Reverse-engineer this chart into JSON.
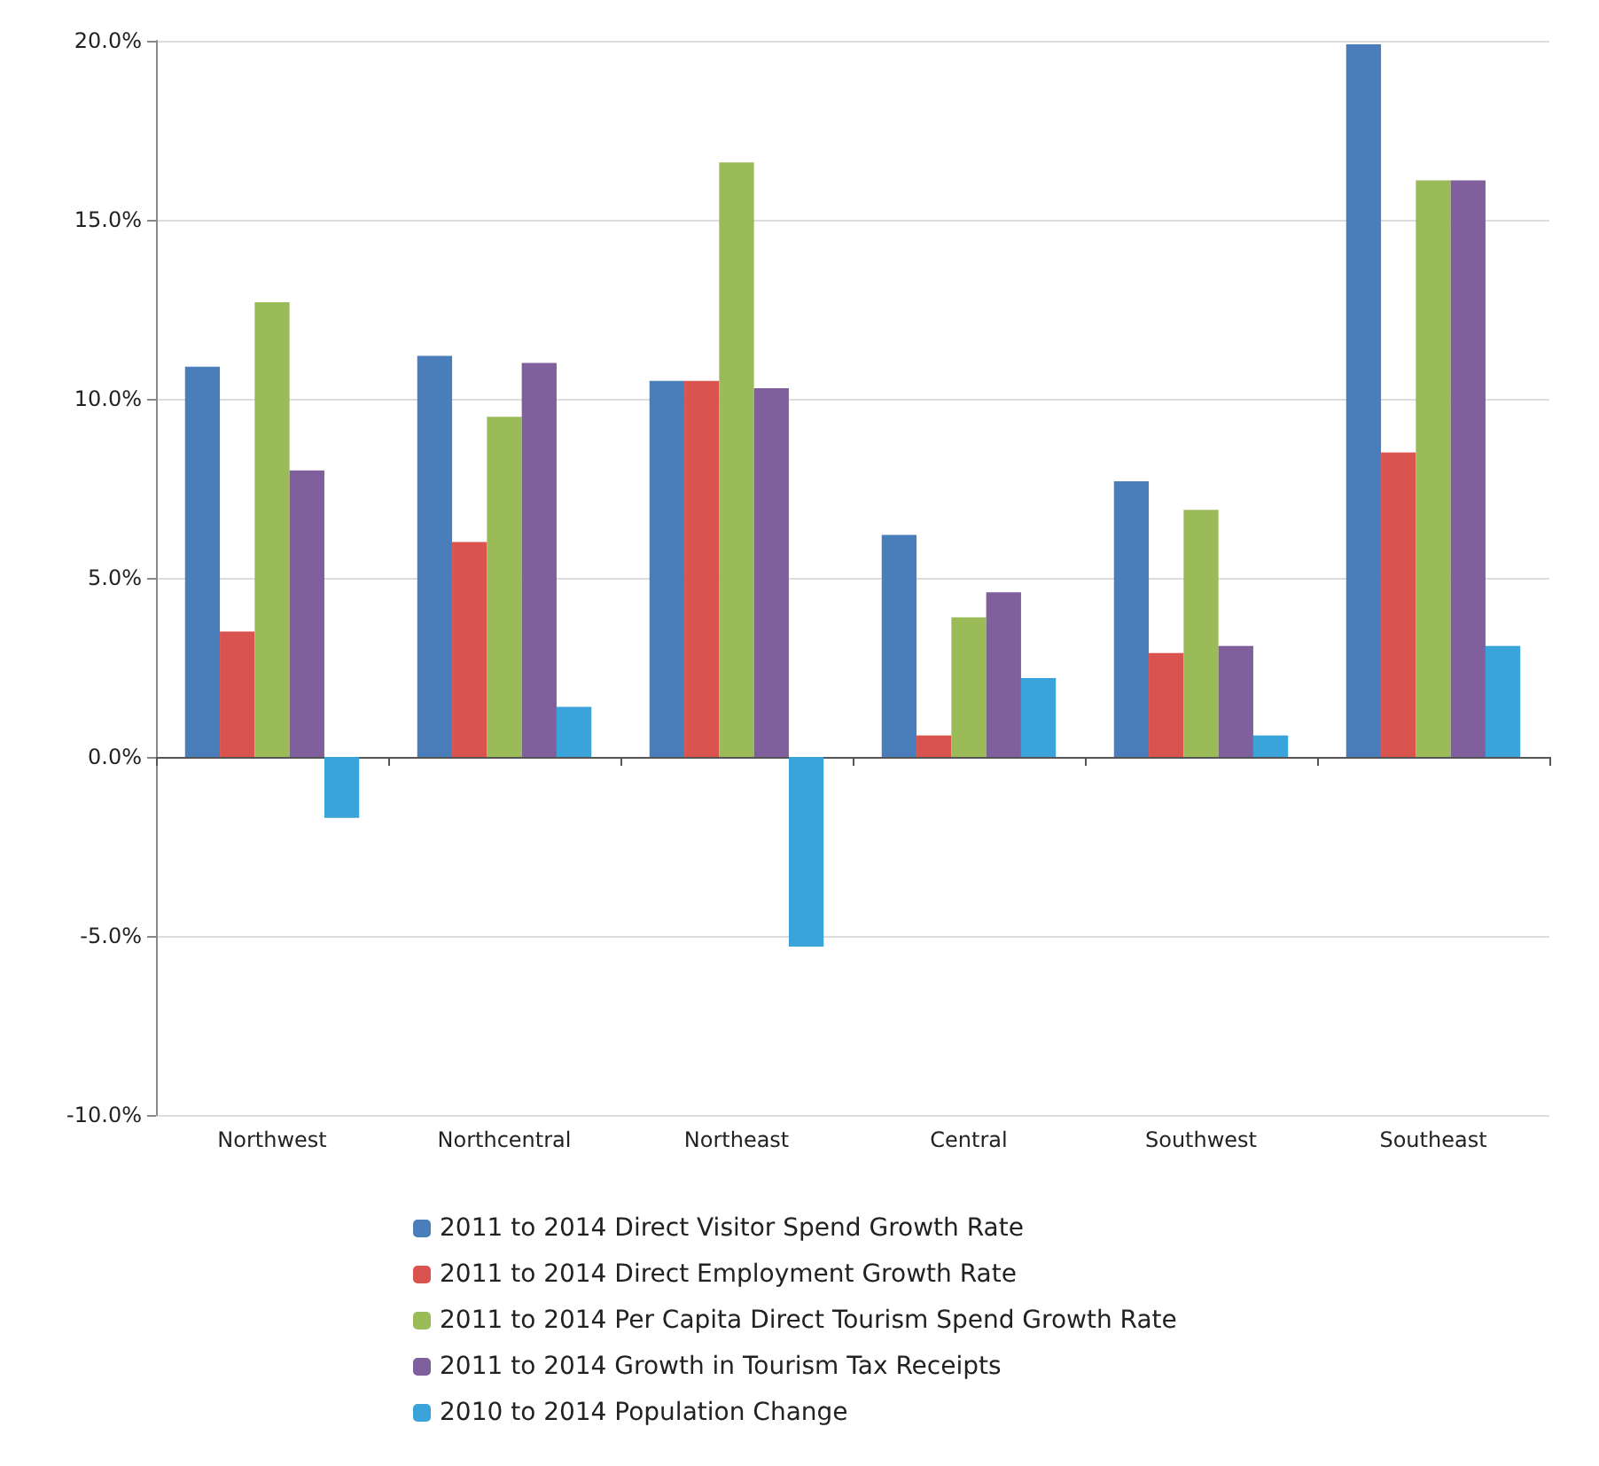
{
  "chart_data": {
    "type": "bar",
    "categories": [
      "Northwest",
      "Northcentral",
      "Northeast",
      "Central",
      "Southwest",
      "Southeast"
    ],
    "series": [
      {
        "name": "2011 to 2014 Direct Visitor Spend Growth Rate",
        "color": "#4a7ebb",
        "values": [
          10.9,
          11.2,
          10.5,
          6.2,
          7.7,
          19.9
        ]
      },
      {
        "name": "2011 to 2014 Direct Employment Growth Rate",
        "color": "#d9534f",
        "values": [
          3.5,
          6.0,
          10.5,
          0.6,
          2.9,
          8.5
        ]
      },
      {
        "name": "2011 to 2014 Per Capita Direct Tourism Spend Growth Rate",
        "color": "#9bbb59",
        "values": [
          12.7,
          9.5,
          16.6,
          3.9,
          6.9,
          16.1
        ]
      },
      {
        "name": "2011 to 2014 Growth in Tourism Tax Receipts",
        "color": "#7f5f9c",
        "values": [
          8.0,
          11.0,
          10.3,
          4.6,
          3.1,
          16.1
        ]
      },
      {
        "name": "2010 to 2014 Population Change",
        "color": "#3aa3d9",
        "values": [
          -1.7,
          1.4,
          -5.3,
          2.2,
          0.6,
          3.1
        ]
      }
    ],
    "ylim": [
      -10,
      20
    ],
    "yticks": [
      {
        "value": -10,
        "label": "-10.0%"
      },
      {
        "value": -5,
        "label": "-5.0%"
      },
      {
        "value": 0,
        "label": "0.0%"
      },
      {
        "value": 5,
        "label": "5.0%"
      },
      {
        "value": 10,
        "label": "10.0%"
      },
      {
        "value": 15,
        "label": "15.0%"
      },
      {
        "value": 20,
        "label": "20.0%"
      }
    ],
    "grid": "y",
    "legend": "bottom"
  }
}
